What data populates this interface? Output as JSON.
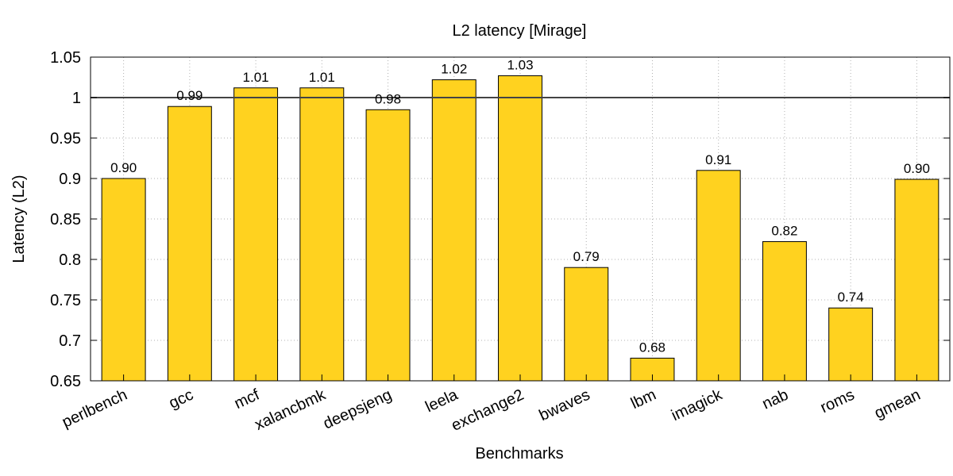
{
  "chart_data": {
    "type": "bar",
    "title": "L2 latency [Mirage]",
    "xlabel": "Benchmarks",
    "ylabel": "Latency (L2)",
    "ylim": [
      0.65,
      1.05
    ],
    "yticks": [
      "0.65",
      "0.7",
      "0.75",
      "0.8",
      "0.85",
      "0.9",
      "0.95",
      "1",
      "1.05"
    ],
    "reference_line": 1,
    "grid": "dotted, both axes",
    "bar_color": "#ffd21f",
    "categories": [
      "perlbench",
      "gcc",
      "mcf",
      "xalancbmk",
      "deepsjeng",
      "leela",
      "exchange2",
      "bwaves",
      "lbm",
      "imagick",
      "nab",
      "roms",
      "gmean"
    ],
    "values": [
      0.9,
      0.989,
      1.012,
      1.012,
      0.985,
      1.022,
      1.027,
      0.79,
      0.678,
      0.91,
      0.822,
      0.74,
      0.899
    ],
    "value_labels": [
      "0.90",
      "0.99",
      "1.01",
      "1.01",
      "0.98",
      "1.02",
      "1.03",
      "0.79",
      "0.68",
      "0.91",
      "0.82",
      "0.74",
      "0.90"
    ]
  }
}
